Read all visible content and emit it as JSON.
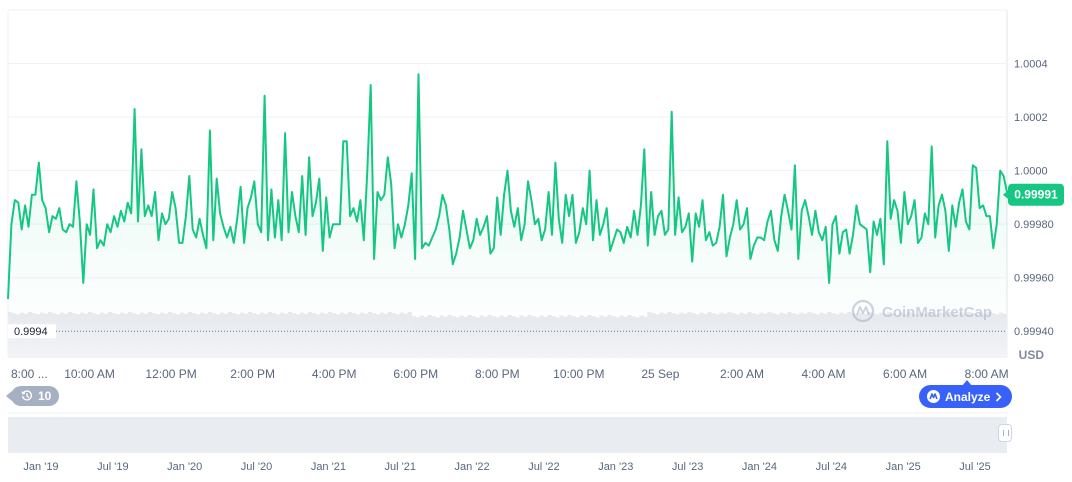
{
  "chart_data": {
    "type": "line",
    "title": "",
    "xlabel": "",
    "ylabel": "",
    "unit_label": "USD",
    "ylim": [
      0.9993,
      1.0006
    ],
    "y_ticks": [
      "1.0004",
      "1.0002",
      "1.0000",
      "0.99980",
      "0.99960",
      "0.99940"
    ],
    "y_tick_values": [
      1.0004,
      1.0002,
      1.0,
      0.9998,
      0.9996,
      0.9994
    ],
    "x_ticks": [
      "8:00 ...",
      "10:00 AM",
      "12:00 PM",
      "2:00 PM",
      "4:00 PM",
      "6:00 PM",
      "8:00 PM",
      "10:00 PM",
      "25 Sep",
      "2:00 AM",
      "4:00 AM",
      "6:00 AM",
      "8:00 AM"
    ],
    "x_tick_hours": [
      0,
      2,
      4,
      6,
      8,
      10,
      12,
      14,
      16,
      18,
      20,
      22,
      24
    ],
    "x_range_hours": [
      0,
      24.5
    ],
    "min_marker": {
      "label": "0.9994",
      "value": 0.9994
    },
    "current_price": {
      "label": "0.99991",
      "value": 0.99991
    },
    "series": [
      {
        "values": [
          0.99952,
          0.9998,
          0.99989,
          0.99988,
          0.99978,
          0.99987,
          0.99979,
          0.99991,
          0.99991,
          1.00003,
          0.99989,
          0.99986,
          0.99977,
          0.99983,
          0.99982,
          0.99986,
          0.99978,
          0.99977,
          0.9998,
          0.99979,
          0.99996,
          0.99981,
          0.99958,
          0.9998,
          0.99976,
          0.99993,
          0.99971,
          0.99974,
          0.99972,
          0.9998,
          0.99977,
          0.99983,
          0.99979,
          0.99985,
          0.99981,
          0.99988,
          0.99984,
          1.00023,
          0.99981,
          1.00008,
          0.99983,
          0.99987,
          0.99983,
          0.99992,
          0.99974,
          0.99984,
          0.9998,
          0.99982,
          0.99992,
          0.99986,
          0.99973,
          0.99973,
          0.99983,
          0.99998,
          0.99978,
          0.99975,
          0.99982,
          0.99976,
          0.99971,
          1.00015,
          0.99974,
          0.99997,
          0.99984,
          0.99979,
          0.99975,
          0.99979,
          0.99973,
          0.99982,
          0.99994,
          0.99973,
          0.99986,
          0.9999,
          0.99996,
          0.9998,
          0.99977,
          1.00028,
          0.99974,
          0.99993,
          0.99975,
          0.99989,
          0.99974,
          1.00014,
          0.99977,
          0.99992,
          0.99983,
          0.99977,
          0.99998,
          0.99976,
          1.00005,
          0.99983,
          0.99988,
          0.99997,
          0.9997,
          0.9999,
          0.99975,
          0.9998,
          0.9998,
          0.9998,
          1.00011,
          1.00011,
          0.99983,
          0.99986,
          0.99981,
          0.99989,
          0.99974,
          0.99999,
          1.00032,
          0.99967,
          0.99992,
          0.99989,
          0.99991,
          1.00005,
          0.99995,
          0.99971,
          0.9998,
          0.99975,
          0.9998,
          0.99987,
          0.99999,
          0.99967,
          1.00036,
          0.99971,
          0.99973,
          0.99972,
          0.99975,
          0.99978,
          0.99983,
          0.99991,
          0.99987,
          0.99978,
          0.99965,
          0.99969,
          0.99975,
          0.99985,
          0.99978,
          0.99971,
          0.99974,
          0.99982,
          0.99976,
          0.99979,
          0.99983,
          0.99969,
          0.99971,
          0.9999,
          0.99976,
          0.99991,
          1.0,
          0.99985,
          0.99979,
          0.99986,
          0.99974,
          0.9998,
          0.99996,
          0.99989,
          0.9998,
          0.99982,
          0.99974,
          0.99978,
          0.99992,
          0.99976,
          1.00003,
          0.99982,
          0.99973,
          0.99991,
          0.99983,
          0.99991,
          0.99973,
          0.99977,
          0.99986,
          0.9998,
          1.0,
          0.99974,
          0.99989,
          0.99976,
          0.9998,
          0.99986,
          0.9997,
          0.99974,
          0.99978,
          0.99977,
          0.99973,
          0.99979,
          0.99975,
          0.99985,
          0.99976,
          0.99987,
          1.00008,
          0.99972,
          0.99992,
          0.99976,
          0.99983,
          0.99985,
          0.99976,
          0.99978,
          1.00022,
          0.99976,
          0.9999,
          0.99977,
          0.99979,
          0.99984,
          0.99966,
          0.99984,
          0.99979,
          0.99989,
          0.99974,
          0.99977,
          0.99972,
          0.99973,
          0.99979,
          0.99991,
          0.99968,
          0.99975,
          0.9998,
          0.99989,
          0.99978,
          0.9998,
          0.99986,
          0.99967,
          0.99972,
          0.99975,
          0.99975,
          0.99974,
          0.99981,
          0.99985,
          0.99974,
          0.9997,
          0.99983,
          0.99991,
          0.99985,
          0.99978,
          1.00002,
          0.99967,
          0.99985,
          0.99989,
          0.99983,
          0.99976,
          0.99985,
          0.99977,
          0.99974,
          0.99979,
          0.99958,
          0.9998,
          0.99983,
          0.99969,
          0.99977,
          0.99978,
          0.99969,
          0.99976,
          0.99987,
          0.9998,
          0.99979,
          0.99978,
          0.99962,
          0.99981,
          0.99976,
          0.99982,
          0.99965,
          1.00011,
          0.99982,
          0.99989,
          0.99985,
          0.99973,
          0.99992,
          0.9998,
          0.99983,
          0.99989,
          0.99973,
          0.99975,
          0.99984,
          0.9998,
          1.00009,
          0.99975,
          0.99987,
          0.99991,
          0.99985,
          0.9997,
          0.99987,
          0.99979,
          0.99988,
          0.99993,
          0.99981,
          0.99978,
          1.00002,
          1.00001,
          0.99986,
          0.99987,
          0.99983,
          0.99983,
          0.99971,
          0.9998,
          1.0,
          0.99998,
          0.99992
        ]
      }
    ],
    "grid": true,
    "line_color": "#16c784",
    "fill_color": "#16c784"
  },
  "watermark_text": "CoinMarketCap",
  "history_badge": {
    "label": "10",
    "icon": "history-clock-icon"
  },
  "analyze_button": {
    "label": "Analyze",
    "icon": "cmc-logo-icon",
    "chevron": "chevron-right-icon"
  },
  "navigator": {
    "labels": [
      "Jan '19",
      "Jul '19",
      "Jan '20",
      "Jul '20",
      "Jan '21",
      "Jul '21",
      "Jan '22",
      "Jul '22",
      "Jan '23",
      "Jul '23",
      "Jan '24",
      "Jul '24",
      "Jan '25",
      "Jul '25"
    ]
  }
}
